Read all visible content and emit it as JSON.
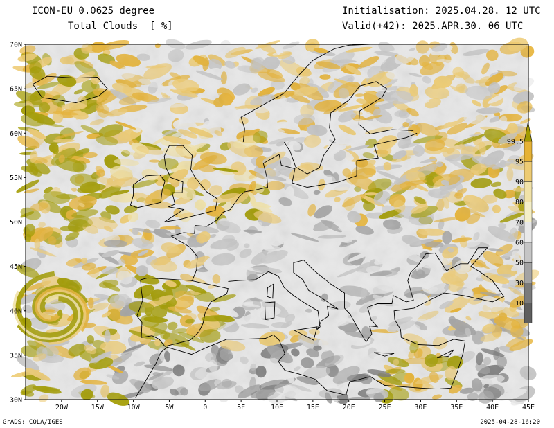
{
  "header": {
    "model": "ICON-EU 0.0625 degree",
    "variable": "Total Clouds  [ %]",
    "initialisation": "Initialisation: 2025.04.28. 12 UTC",
    "valid": "Valid(+42): 2025.APR.30. 06 UTC"
  },
  "map": {
    "lat_range": [
      30,
      70
    ],
    "lon_range": [
      -25,
      45
    ],
    "lat_ticks": [
      "30N",
      "35N",
      "40N",
      "45N",
      "50N",
      "55N",
      "60N",
      "65N",
      "70N"
    ],
    "lon_ticks": [
      "20W",
      "15W",
      "10W",
      "5W",
      "0",
      "5E",
      "10E",
      "15E",
      "20E",
      "25E",
      "30E",
      "35E",
      "40E",
      "45E"
    ]
  },
  "colorbar": {
    "labels": [
      "99.5",
      "95",
      "90",
      "80",
      "70",
      "60",
      "50",
      "30",
      "10"
    ],
    "colors": [
      "#a29b00",
      "#e6b234",
      "#edcb73",
      "#f1e2a7",
      "#f4efc8",
      "#e8e8e8",
      "#c5c5c5",
      "#a3a3a3",
      "#7b7b7b",
      "#5e5e5e"
    ]
  },
  "footer": {
    "left": "GrADS: COLA/IGES",
    "right": "2025-04-28-16:20"
  }
}
